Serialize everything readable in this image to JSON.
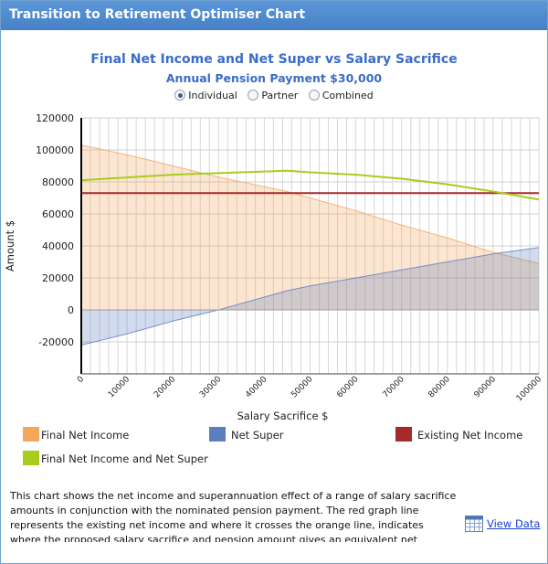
{
  "window": {
    "title": "Transition to Retirement Optimiser Chart"
  },
  "chart_header": {
    "title": "Final Net Income and Net Super vs Salary Sacrifice",
    "subtitle": "Annual Pension Payment $30,000"
  },
  "view_options": [
    {
      "label": "Individual",
      "selected": true
    },
    {
      "label": "Partner",
      "selected": false
    },
    {
      "label": "Combined",
      "selected": false
    }
  ],
  "chart_data": {
    "type": "area",
    "xlabel": "Salary Sacrifice $",
    "ylabel": "Amount $",
    "xlim": [
      0,
      100000
    ],
    "ylim": [
      -40000,
      120000
    ],
    "x_ticks": [
      "0",
      "10000",
      "20000",
      "30000",
      "40000",
      "50000",
      "60000",
      "70000",
      "80000",
      "90000",
      "100000"
    ],
    "y_ticks": [
      "120000",
      "100000",
      "80000",
      "60000",
      "40000",
      "20000",
      "0",
      "-20000"
    ],
    "grid": true,
    "x": [
      0,
      10000,
      20000,
      30000,
      40000,
      45000,
      50000,
      60000,
      70000,
      80000,
      90000,
      100000
    ],
    "series": [
      {
        "name": "Final Net Income",
        "kind": "area",
        "color": "#f5a65b",
        "values": [
          103000,
          97000,
          90000,
          83000,
          77000,
          74000,
          70000,
          62000,
          53000,
          45000,
          36000,
          29000
        ]
      },
      {
        "name": "Net Super",
        "kind": "area",
        "color": "#5b7ec0",
        "values": [
          -22000,
          -15000,
          -7000,
          0,
          8000,
          12000,
          15000,
          20000,
          25000,
          30000,
          35000,
          39000
        ]
      },
      {
        "name": "Existing Net Income",
        "kind": "line",
        "color": "#a52a2a",
        "values": [
          73000,
          73000,
          73000,
          73000,
          73000,
          73000,
          73000,
          73000,
          73000,
          73000,
          73000,
          73000
        ]
      },
      {
        "name": "Final Net Income and Net Super",
        "kind": "line",
        "color": "#a8cc1e",
        "values": [
          81000,
          82800,
          84500,
          85500,
          86500,
          87000,
          86000,
          84500,
          82000,
          78500,
          74000,
          69000
        ]
      }
    ],
    "legend_position": "bottom"
  },
  "legend": [
    {
      "label": "Final Net Income",
      "color": "#f5a65b"
    },
    {
      "label": "Net Super",
      "color": "#5b7ec0"
    },
    {
      "label": "Existing Net Income",
      "color": "#a52a2a"
    },
    {
      "label": "Final Net Income and Net Super",
      "color": "#a8cc1e"
    }
  ],
  "description": "This chart shows the net income and superannuation effect of a range of salary sacrifice amounts in conjunction with the nominated pension payment. The red graph line represents the existing net income and where it crosses the orange line, indicates where the proposed salary sacrifice and pension amount gives an equivalent net income. The highest",
  "view_data": {
    "label": "View Data",
    "icon": "calendar-table-icon"
  }
}
